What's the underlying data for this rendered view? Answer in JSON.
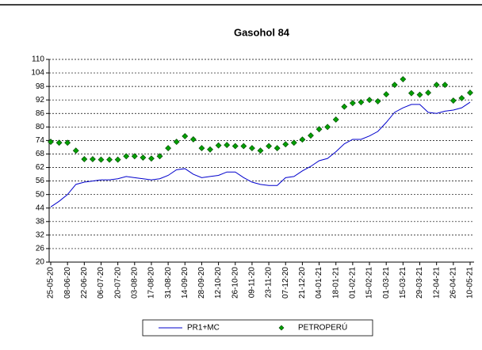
{
  "chart_data": {
    "type": "line",
    "title": "Gasohol 84",
    "categories": [
      "25-05-20",
      null,
      "08-06-20",
      null,
      "22-06-20",
      null,
      "06-07-20",
      null,
      "20-07-20",
      null,
      "03-08-20",
      null,
      "17-08-20",
      null,
      "31-08-20",
      null,
      "14-09-20",
      null,
      "28-09-20",
      null,
      "12-10-20",
      null,
      "26-10-20",
      null,
      "09-11-20",
      null,
      "23-11-20",
      null,
      "07-12-20",
      null,
      "21-12-20",
      null,
      "04-01-21",
      null,
      "18-01-21",
      null,
      "01-02-21",
      null,
      "15-02-21",
      null,
      "01-03-21",
      null,
      "15-03-21",
      null,
      "29-03-21",
      null,
      "12-04-21",
      null,
      "26-04-21",
      null,
      "10-05-21"
    ],
    "series": [
      {
        "name": "PR1+MC",
        "color": "#0000cc",
        "marker": "none",
        "values": [
          44.5,
          47,
          50,
          54.5,
          55.5,
          56,
          56.5,
          56.5,
          57,
          58,
          57.5,
          57,
          56.5,
          57,
          58.5,
          61,
          61.5,
          59,
          57.5,
          58,
          58.5,
          60,
          60,
          57.5,
          55.5,
          54.5,
          54,
          54,
          57.5,
          58,
          60.5,
          62.5,
          65,
          66,
          69,
          72.5,
          74.5,
          74.5,
          76,
          78,
          82,
          86.5,
          88.5,
          90,
          90,
          86.5,
          86,
          87,
          87.5,
          88.5,
          91
        ]
      },
      {
        "name": "PETROPERÚ",
        "color": "#00a000",
        "marker": "diamond",
        "values": [
          73.4,
          73,
          73,
          69.5,
          65.7,
          65.7,
          65.5,
          65.5,
          65.5,
          67,
          67,
          66.4,
          66,
          67,
          70.6,
          73.4,
          75.9,
          74.5,
          70.6,
          70,
          71.8,
          72,
          71.5,
          71.5,
          70.6,
          69.5,
          71.5,
          70.6,
          72.3,
          73,
          74.4,
          76.2,
          79,
          80,
          83.3,
          89,
          90.6,
          91,
          92,
          91.4,
          94.5,
          98.7,
          101.2,
          95,
          94.3,
          95.2,
          98.7,
          98.7,
          91.7,
          92.8,
          95.2
        ]
      }
    ],
    "ylim": [
      20,
      110
    ],
    "yticks": [
      20,
      26,
      32,
      38,
      44,
      50,
      56,
      62,
      68,
      74,
      80,
      86,
      92,
      98,
      104,
      110
    ],
    "grid": true,
    "legend": "bottom"
  }
}
